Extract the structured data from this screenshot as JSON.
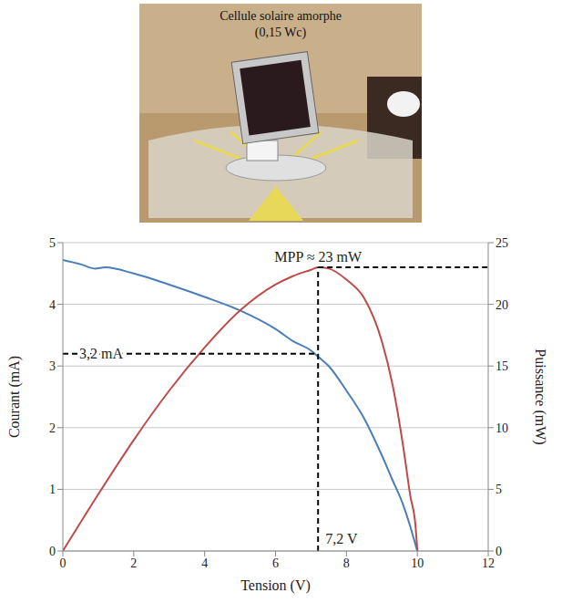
{
  "photo": {
    "caption": "Cellule solaire amorphe",
    "rating": "(0,15 Wc)"
  },
  "chart_data": {
    "type": "line",
    "x_label": "Tension (V)",
    "y_label": "Courant (mA)",
    "y2_label": "Puissance (mW)",
    "xlim": [
      0,
      12
    ],
    "xticks": [
      0,
      2,
      4,
      6,
      8,
      10,
      12
    ],
    "ylim": [
      0,
      5
    ],
    "yticks": [
      0,
      1,
      2,
      3,
      4,
      5
    ],
    "y2lim": [
      0,
      25
    ],
    "y2ticks": [
      0,
      5,
      10,
      15,
      20,
      25
    ],
    "grid": true,
    "series": [
      {
        "color": "#4a7ebb",
        "x": [
          0,
          0.5,
          0.9,
          1.2,
          2,
          3,
          4,
          5,
          6,
          6.5,
          7,
          7.2,
          7.5,
          8,
          8.5,
          9,
          9.3,
          9.6,
          9.8,
          9.9,
          10
        ],
        "values": [
          4.72,
          4.65,
          4.58,
          4.6,
          4.5,
          4.32,
          4.12,
          3.9,
          3.6,
          3.4,
          3.25,
          3.15,
          3.0,
          2.6,
          2.15,
          1.55,
          1.15,
          0.75,
          0.4,
          0.2,
          0
        ]
      },
      {
        "color": "#be4b48",
        "axis": "y2",
        "x": [
          0,
          1,
          2,
          3,
          4,
          5,
          6,
          6.5,
          7,
          7.2,
          7.5,
          8,
          8.5,
          9,
          9.3,
          9.6,
          9.8,
          9.95,
          10
        ],
        "values": [
          0,
          4.6,
          9,
          13,
          16.5,
          19.5,
          21.6,
          22.3,
          22.8,
          23,
          22.9,
          22,
          20.5,
          17,
          13.5,
          8.5,
          4.5,
          2,
          0
        ]
      }
    ],
    "annotations": [
      {
        "text": "MPP ≈ 23 mW",
        "x": 7.2,
        "y": 23,
        "axis": "y2"
      },
      {
        "text": "3,2 mA",
        "x": 7.2,
        "y": 3.2
      },
      {
        "text": "7,2 V",
        "x": 7.2,
        "y": 0
      }
    ]
  }
}
